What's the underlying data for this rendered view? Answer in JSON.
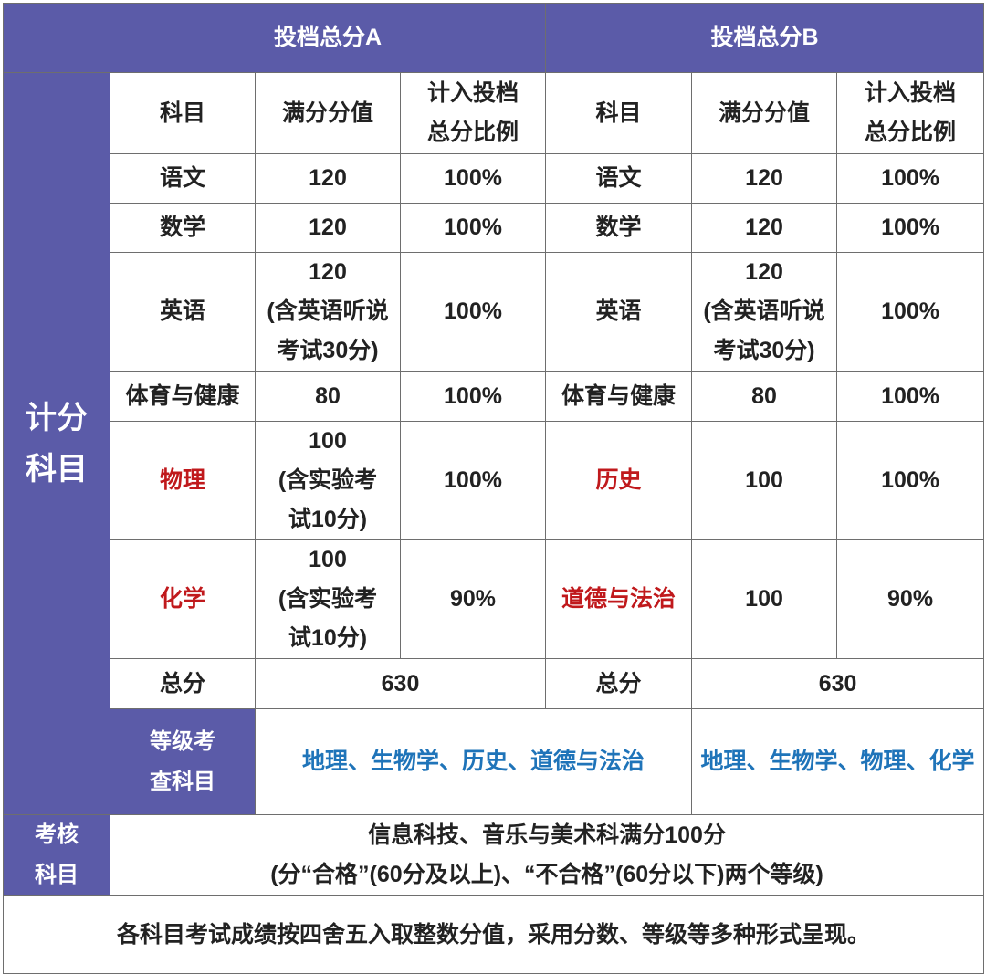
{
  "header": {
    "a": "投档总分A",
    "b": "投档总分B"
  },
  "row_labels": {
    "scoring": [
      "计分",
      "科目"
    ],
    "grade": [
      "等级考",
      "查科目"
    ],
    "assess": [
      "考核",
      "科目"
    ]
  },
  "col_headers": {
    "subject": "科目",
    "full_score": "满分分值",
    "ratio": [
      "计入投档",
      "总分比例"
    ]
  },
  "table_a": {
    "rows": [
      {
        "subject": "语文",
        "score": [
          "120"
        ],
        "ratio": "100%"
      },
      {
        "subject": "数学",
        "score": [
          "120"
        ],
        "ratio": "100%"
      },
      {
        "subject": "英语",
        "score": [
          "120",
          "(含英语听说",
          "考试30分)"
        ],
        "ratio": "100%"
      },
      {
        "subject": "体育与健康",
        "score": [
          "80"
        ],
        "ratio": "100%"
      },
      {
        "subject": "物理",
        "score": [
          "100",
          "(含实验考",
          "试10分)"
        ],
        "ratio": "100%"
      },
      {
        "subject": "化学",
        "score": [
          "100",
          "(含实验考",
          "试10分)"
        ],
        "ratio": "90%"
      }
    ],
    "total_label": "总分",
    "total": "630",
    "grade_subjects": "地理、生物学、历史、道德与法治"
  },
  "table_b": {
    "rows": [
      {
        "subject": "语文",
        "score": [
          "120"
        ],
        "ratio": "100%"
      },
      {
        "subject": "数学",
        "score": [
          "120"
        ],
        "ratio": "100%"
      },
      {
        "subject": "英语",
        "score": [
          "120",
          "(含英语听说",
          "考试30分)"
        ],
        "ratio": "100%"
      },
      {
        "subject": "体育与健康",
        "score": [
          "80"
        ],
        "ratio": "100%"
      },
      {
        "subject": "历史",
        "score": [
          "100"
        ],
        "ratio": "100%"
      },
      {
        "subject": "道德与法治",
        "score": [
          "100"
        ],
        "ratio": "90%"
      }
    ],
    "total_label": "总分",
    "total": "630",
    "grade_subjects": "地理、生物学、物理、化学"
  },
  "assess_text": [
    "信息科技、音乐与美术科满分100分",
    "(分“合格”(60分及以上)、“不合格”(60分以下)两个等级)"
  ],
  "footer": "各科目考试成绩按四舍五入取整数分值，采用分数、等级等多种形式呈现。",
  "colors": {
    "header_bg": "#5b5ba8",
    "header_text": "#ffffff",
    "highlight_red": "#c0191c",
    "grade_blue": "#1f74b9",
    "border": "#6e6e6e"
  }
}
